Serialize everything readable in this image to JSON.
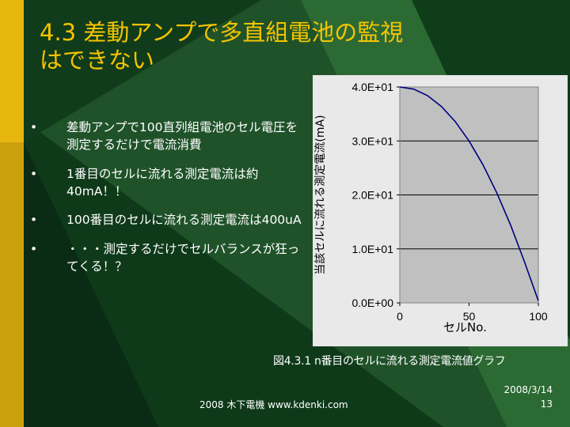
{
  "slide": {
    "title_line1": "4.3 差動アンプで多直組電池の監視",
    "title_line2": "はできない",
    "bullets": [
      {
        "marker": "•",
        "text": "差動アンプで100直列組電池のセル電圧を測定するだけで電流消費"
      },
      {
        "marker": "•",
        "text": "1番目のセルに流れる測定電流は約40mA！！"
      },
      {
        "marker": "•",
        "text": "100番目のセルに流れる測定電流は400uA"
      },
      {
        "marker": "•",
        "text": "・・・測定するだけでセルバランスが狂ってくる！？"
      }
    ],
    "caption": "図4.3.1 n番目のセルに流れる測定電流値グラフ",
    "footer": "2008 木下電機 www.kdenki.com",
    "date": "2008/3/14",
    "page_number": "13"
  },
  "colors": {
    "title": "#f5c400",
    "accent_bar": "#e8b70f",
    "background": "#0e3a1a",
    "plot_background": "#c0c0c0",
    "series_line": "#000080"
  },
  "chart_data": {
    "type": "line",
    "title": "",
    "xlabel": "セルNo.",
    "ylabel": "当該セルに流れる測定電流(mA)",
    "xlim": [
      0,
      100
    ],
    "ylim": [
      0,
      40
    ],
    "x_ticks": [
      "0",
      "50",
      "100"
    ],
    "x_tick_values": [
      0,
      50,
      100
    ],
    "y_ticks": [
      "0.0E+00",
      "1.0E+01",
      "2.0E+01",
      "3.0E+01",
      "4.0E+01"
    ],
    "y_tick_values": [
      0,
      10,
      20,
      30,
      40
    ],
    "grid": true,
    "legend": "none",
    "series": [
      {
        "x": [
          0,
          10,
          20,
          30,
          40,
          50,
          60,
          70,
          80,
          90,
          100
        ],
        "values": [
          40,
          39.6,
          38.4,
          36.4,
          33.6,
          30,
          25.6,
          20.4,
          14.4,
          7.6,
          0.4
        ]
      }
    ]
  }
}
